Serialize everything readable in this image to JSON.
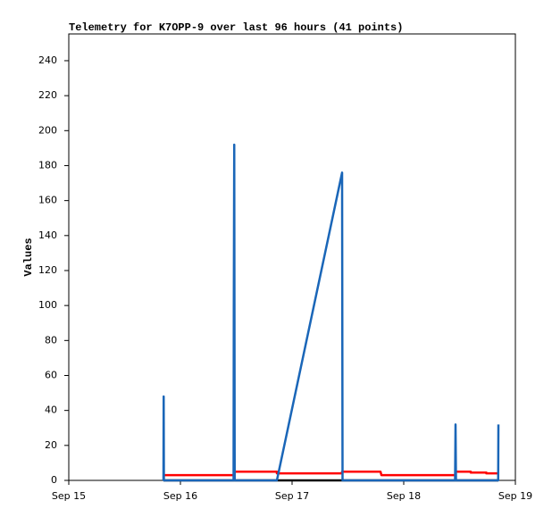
{
  "chart_data": {
    "type": "line",
    "title": "Telemetry for K7OPP-9 over last 96 hours (41 points)",
    "y_label": "Values",
    "xlim": [
      0,
      4
    ],
    "ylim": [
      0,
      255.3
    ],
    "xticks": [
      {
        "value": 0,
        "label": "Sep 15"
      },
      {
        "value": 1,
        "label": "Sep 16"
      },
      {
        "value": 2,
        "label": "Sep 17"
      },
      {
        "value": 3,
        "label": "Sep 18"
      },
      {
        "value": 4,
        "label": "Sep 19"
      }
    ],
    "yticks": [
      0,
      20,
      40,
      60,
      80,
      100,
      120,
      140,
      160,
      180,
      200,
      220,
      240
    ],
    "grid": false,
    "series": [
      {
        "color": "#000000",
        "x": [
          0.848,
          3.848
        ],
        "values": [
          0,
          0
        ]
      },
      {
        "color": "#ff0000",
        "x": [
          0.848,
          1.48,
          1.48,
          1.864,
          1.864,
          2.448,
          2.448,
          2.792,
          2.8,
          3.464,
          3.464,
          3.6,
          3.6,
          3.74,
          3.74,
          3.848
        ],
        "values": [
          3,
          3,
          5,
          5,
          4,
          4,
          5,
          5,
          3,
          3,
          5,
          5,
          4.5,
          4.5,
          4,
          4
        ]
      },
      {
        "color": "#1a66b8",
        "x": [
          0.848,
          0.85,
          0.852,
          1.476,
          1.478,
          1.482,
          1.486,
          1.864,
          2.448,
          2.452,
          3.46,
          3.462,
          3.464,
          3.468,
          3.846,
          3.848
        ],
        "values": [
          0,
          48,
          0,
          0,
          97,
          192,
          0,
          0,
          176,
          0,
          0,
          16,
          32,
          0,
          0,
          32
        ]
      }
    ]
  }
}
